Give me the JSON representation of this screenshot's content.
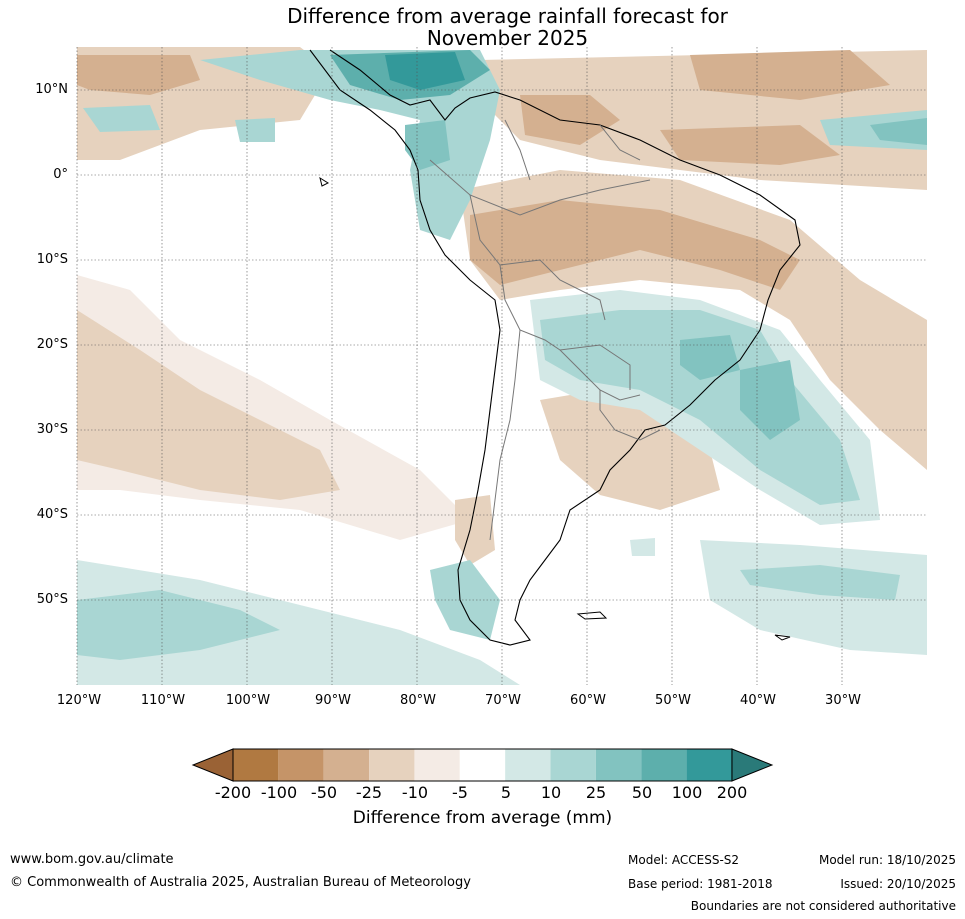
{
  "title": {
    "line1": "Difference from average rainfall forecast for",
    "line2": "November 2025"
  },
  "map": {
    "region": "South America",
    "latitude_labels": [
      "10°N",
      "0°",
      "10°S",
      "20°S",
      "30°S",
      "40°S",
      "50°S"
    ],
    "longitude_labels": [
      "120°W",
      "110°W",
      "100°W",
      "90°W",
      "80°W",
      "70°W",
      "60°W",
      "50°W",
      "40°W",
      "30°W"
    ]
  },
  "colorbar": {
    "labels": [
      "-200",
      "-100",
      "-50",
      "-25",
      "-10",
      "-5",
      "5",
      "10",
      "25",
      "50",
      "100",
      "200"
    ],
    "colors": [
      "#9a6235",
      "#b07941",
      "#c59468",
      "#d4b090",
      "#e6d2be",
      "#f4ebe5",
      "#ffffff",
      "#d3e8e6",
      "#a9d6d3",
      "#82c3c0",
      "#5dafac",
      "#33999a",
      "#2a7a79"
    ],
    "title": "Difference from average (mm)"
  },
  "footer": {
    "url": "www.bom.gov.au/climate",
    "copyright": "© Commonwealth of Australia 2025, Australian Bureau of Meteorology",
    "model": "Model: ACCESS-S2",
    "base_period": "Base period: 1981-2018",
    "model_run": "Model run: 18/10/2025",
    "issued": "Issued: 20/10/2025",
    "disclaimer": "Boundaries are not considered authoritative"
  }
}
